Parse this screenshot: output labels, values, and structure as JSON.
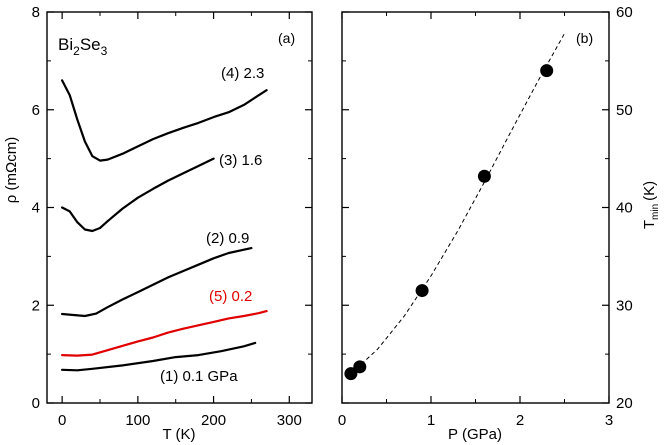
{
  "chart_data": [
    {
      "panel": "a",
      "panel_label": "(a)",
      "type": "line",
      "material": {
        "base": "Bi",
        "sub1": "2",
        "mid": "Se",
        "sub2": "3"
      },
      "xlabel": "T (K)",
      "ylabel": "ρ (mΩcm)",
      "xlim": [
        -20,
        330
      ],
      "ylim": [
        0,
        8
      ],
      "xticks": [
        0,
        100,
        200,
        300
      ],
      "yticks": [
        0,
        2,
        4,
        6,
        8
      ],
      "grid": false,
      "series": [
        {
          "name": "(1) 0.1 GPa",
          "color": "#000000",
          "x": [
            0,
            20,
            40,
            80,
            120,
            150,
            180,
            210,
            240,
            255
          ],
          "y": [
            0.68,
            0.67,
            0.7,
            0.77,
            0.86,
            0.94,
            0.98,
            1.06,
            1.16,
            1.23
          ]
        },
        {
          "name": "(5) 0.2",
          "color": "#e00000",
          "x": [
            0,
            20,
            40,
            60,
            80,
            100,
            120,
            140,
            160,
            180,
            200,
            220,
            240,
            260,
            270
          ],
          "y": [
            0.98,
            0.97,
            0.99,
            1.08,
            1.17,
            1.26,
            1.34,
            1.44,
            1.52,
            1.59,
            1.66,
            1.73,
            1.78,
            1.84,
            1.88
          ]
        },
        {
          "name": "(2) 0.9",
          "color": "#000000",
          "x": [
            0,
            15,
            30,
            45,
            60,
            80,
            100,
            120,
            140,
            160,
            180,
            200,
            220,
            250
          ],
          "y": [
            1.82,
            1.8,
            1.78,
            1.83,
            1.96,
            2.12,
            2.27,
            2.42,
            2.57,
            2.7,
            2.83,
            2.96,
            3.07,
            3.17
          ]
        },
        {
          "name": "(3) 1.6",
          "color": "#000000",
          "x": [
            0,
            10,
            20,
            30,
            40,
            50,
            60,
            80,
            100,
            120,
            140,
            160,
            180,
            200
          ],
          "y": [
            4.0,
            3.92,
            3.7,
            3.55,
            3.52,
            3.58,
            3.72,
            3.98,
            4.2,
            4.38,
            4.55,
            4.7,
            4.85,
            5.0
          ]
        },
        {
          "name": "(4) 2.3",
          "color": "#000000",
          "x": [
            0,
            10,
            20,
            30,
            40,
            50,
            60,
            80,
            100,
            120,
            140,
            160,
            180,
            200,
            220,
            240,
            260,
            270
          ],
          "y": [
            6.6,
            6.3,
            5.8,
            5.35,
            5.05,
            4.96,
            4.98,
            5.1,
            5.25,
            5.4,
            5.52,
            5.63,
            5.73,
            5.85,
            5.95,
            6.1,
            6.3,
            6.4
          ]
        }
      ],
      "annotations": [
        "(1) 0.1 GPa",
        "(5) 0.2",
        "(2) 0.9",
        "(3) 1.6",
        "(4) 2.3"
      ]
    },
    {
      "panel": "b",
      "panel_label": "(b)",
      "type": "scatter",
      "xlabel": "P (GPa)",
      "ylabel_base": "T",
      "ylabel_sub": "min",
      "ylabel_unit": "(K)",
      "xlim": [
        0,
        3
      ],
      "ylim": [
        20,
        60
      ],
      "xticks": [
        0,
        1,
        2,
        3
      ],
      "yticks": [
        20,
        30,
        40,
        50,
        60
      ],
      "grid": false,
      "points": {
        "x": [
          0.1,
          0.2,
          0.9,
          1.6,
          2.3
        ],
        "y": [
          23.0,
          23.7,
          31.5,
          43.2,
          54.0
        ]
      },
      "fit_line": {
        "style": "dashed",
        "x": [
          0.1,
          0.4,
          0.7,
          1.0,
          1.3,
          1.6,
          1.9,
          2.2,
          2.5
        ],
        "y": [
          23.0,
          25.5,
          28.9,
          33.0,
          37.6,
          42.6,
          47.8,
          52.9,
          57.8
        ]
      }
    }
  ]
}
